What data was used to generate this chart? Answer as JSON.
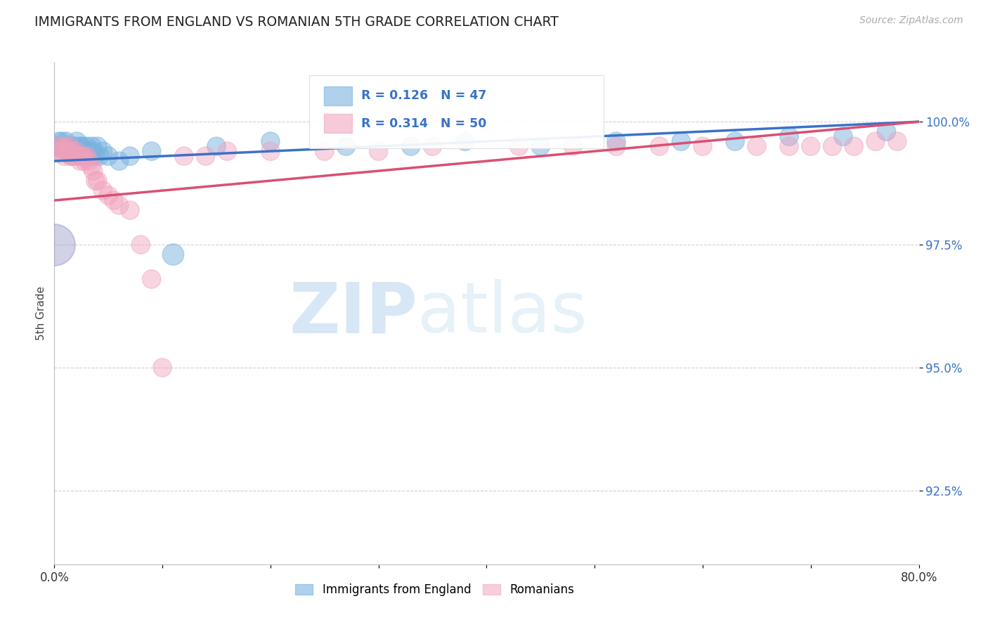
{
  "title": "IMMIGRANTS FROM ENGLAND VS ROMANIAN 5TH GRADE CORRELATION CHART",
  "source": "Source: ZipAtlas.com",
  "ylabel": "5th Grade",
  "xlim": [
    0.0,
    80.0
  ],
  "ylim": [
    91.0,
    101.2
  ],
  "yticks": [
    92.5,
    95.0,
    97.5,
    100.0
  ],
  "ytick_labels": [
    "92.5%",
    "95.0%",
    "97.5%",
    "100.0%"
  ],
  "xticks": [
    0.0,
    10.0,
    20.0,
    30.0,
    40.0,
    50.0,
    60.0,
    70.0,
    80.0
  ],
  "xtick_labels": [
    "0.0%",
    "",
    "",
    "",
    "",
    "",
    "",
    "",
    "80.0%"
  ],
  "england_R": 0.126,
  "england_N": 47,
  "romanian_R": 0.314,
  "romanian_N": 50,
  "england_color": "#7ab3e0",
  "romanian_color": "#f0a0bb",
  "england_line_color": "#3a72c8",
  "romanian_line_color": "#d94f72",
  "watermark_zip": "ZIP",
  "watermark_atlas": "atlas",
  "background_color": "#ffffff",
  "england_x": [
    0.2,
    0.4,
    0.5,
    0.6,
    0.7,
    0.8,
    0.9,
    1.0,
    1.1,
    1.2,
    1.3,
    1.5,
    1.6,
    1.8,
    2.0,
    2.1,
    2.2,
    2.4,
    2.5,
    2.6,
    2.8,
    3.0,
    3.2,
    3.4,
    3.5,
    3.6,
    3.8,
    4.0,
    4.2,
    4.5,
    5.0,
    6.0,
    7.0,
    9.0,
    11.0,
    15.0,
    20.0,
    27.0,
    33.0,
    38.0,
    45.0,
    52.0,
    58.0,
    63.0,
    68.0,
    73.0,
    77.0
  ],
  "england_y": [
    99.5,
    99.6,
    99.5,
    99.5,
    99.6,
    99.4,
    99.5,
    99.5,
    99.6,
    99.5,
    99.4,
    99.5,
    99.3,
    99.4,
    99.5,
    99.6,
    99.4,
    99.5,
    99.3,
    99.5,
    99.4,
    99.5,
    99.4,
    99.3,
    99.5,
    99.4,
    99.3,
    99.5,
    99.3,
    99.4,
    99.3,
    99.2,
    99.3,
    99.4,
    97.3,
    99.5,
    99.6,
    99.5,
    99.5,
    99.6,
    99.5,
    99.6,
    99.6,
    99.6,
    99.7,
    99.7,
    99.8
  ],
  "england_sizes": [
    30,
    30,
    30,
    30,
    30,
    30,
    30,
    30,
    30,
    30,
    30,
    30,
    30,
    30,
    30,
    30,
    30,
    30,
    30,
    30,
    30,
    30,
    30,
    30,
    30,
    30,
    30,
    30,
    30,
    30,
    30,
    30,
    30,
    30,
    40,
    30,
    30,
    30,
    30,
    30,
    30,
    30,
    30,
    30,
    30,
    30,
    30
  ],
  "england_large_x": [
    0.0
  ],
  "england_large_y": [
    97.5
  ],
  "england_large_s": [
    1800
  ],
  "romanian_x": [
    0.3,
    0.5,
    0.7,
    0.9,
    1.0,
    1.1,
    1.2,
    1.4,
    1.5,
    1.6,
    1.8,
    2.0,
    2.2,
    2.4,
    2.5,
    2.7,
    2.8,
    3.0,
    3.2,
    3.4,
    3.6,
    3.8,
    4.0,
    4.5,
    5.0,
    5.5,
    6.0,
    7.0,
    8.0,
    9.0,
    10.0,
    12.0,
    14.0,
    16.0,
    20.0,
    25.0,
    30.0,
    35.0,
    43.0,
    48.0,
    52.0,
    56.0,
    60.0,
    65.0,
    68.0,
    70.0,
    72.0,
    74.0,
    76.0,
    78.0
  ],
  "romanian_y": [
    99.5,
    99.4,
    99.5,
    99.3,
    99.5,
    99.4,
    99.4,
    99.5,
    99.3,
    99.4,
    99.3,
    99.4,
    99.3,
    99.2,
    99.3,
    99.3,
    99.2,
    99.3,
    99.2,
    99.1,
    99.0,
    98.8,
    98.8,
    98.6,
    98.5,
    98.4,
    98.3,
    98.2,
    97.5,
    96.8,
    95.0,
    99.3,
    99.3,
    99.4,
    99.4,
    99.4,
    99.4,
    99.5,
    99.5,
    99.5,
    99.5,
    99.5,
    99.5,
    99.5,
    99.5,
    99.5,
    99.5,
    99.5,
    99.6,
    99.6
  ],
  "romanian_sizes": [
    30,
    30,
    30,
    30,
    30,
    30,
    30,
    30,
    30,
    30,
    30,
    30,
    30,
    30,
    30,
    30,
    30,
    30,
    30,
    30,
    30,
    30,
    30,
    30,
    30,
    30,
    30,
    30,
    30,
    30,
    30,
    30,
    30,
    30,
    30,
    30,
    30,
    30,
    30,
    30,
    30,
    30,
    30,
    30,
    30,
    30,
    30,
    30,
    30,
    30
  ]
}
